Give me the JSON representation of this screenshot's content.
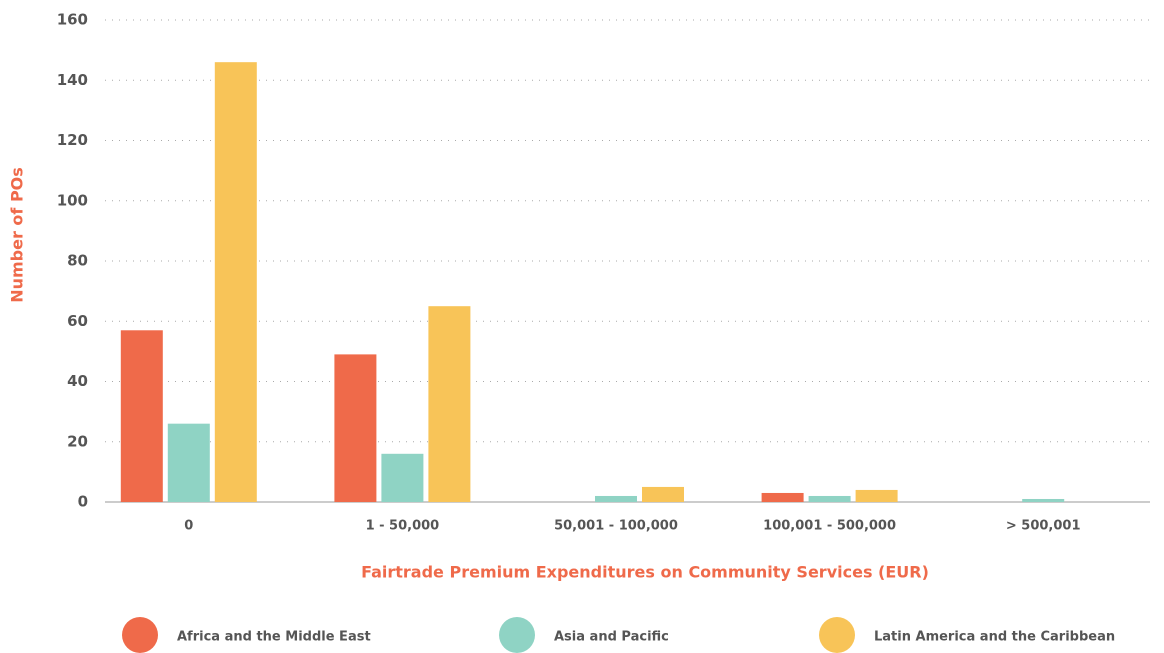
{
  "chart_data": {
    "type": "bar",
    "x_label": "Fairtrade Premium Expenditures on Community Services (EUR)",
    "y_label": "Number of POs",
    "categories": [
      "0",
      "1 - 50,000",
      "50,001 - 100,000",
      "100,001 - 500,000",
      "> 500,001"
    ],
    "series": [
      {
        "name": "Africa and the Middle East",
        "color": "#ef6a4a",
        "values": [
          57,
          49,
          0,
          3,
          0
        ]
      },
      {
        "name": "Asia and Pacific",
        "color": "#8fd3c4",
        "values": [
          26,
          16,
          2,
          2,
          1
        ]
      },
      {
        "name": "Latin America and the Caribbean",
        "color": "#f8c458",
        "values": [
          146,
          65,
          5,
          4,
          0
        ]
      }
    ],
    "ylim": [
      0,
      160
    ],
    "yticks": [
      0,
      20,
      40,
      60,
      80,
      100,
      120,
      140,
      160
    ],
    "grid": true
  }
}
